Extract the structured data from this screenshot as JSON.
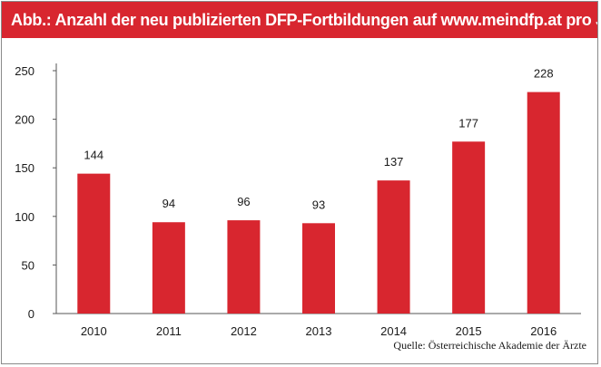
{
  "header": {
    "title": "Abb.: Anzahl der neu publizierten DFP-Fortbildungen auf www.meindfp.at pro Jahr"
  },
  "source_note": "Quelle: Österreichische Akademie der Ärzte",
  "colors": {
    "accent": "#d8262f",
    "bar": "#d8262f",
    "text": "#1a1a1a"
  },
  "chart_data": {
    "type": "bar",
    "categories": [
      "2010",
      "2011",
      "2012",
      "2013",
      "2014",
      "2015",
      "2016"
    ],
    "values": [
      144,
      94,
      96,
      93,
      137,
      177,
      228
    ],
    "data_labels": [
      "144",
      "94",
      "96",
      "93",
      "137",
      "177",
      "228"
    ],
    "yticks": [
      0,
      50,
      100,
      150,
      200,
      250
    ],
    "ylim": [
      0,
      250
    ],
    "grid": false,
    "legend": "none",
    "title": "Abb.: Anzahl der neu publizierten DFP-Fortbildungen auf www.meindfp.at pro Jahr",
    "xlabel": "",
    "ylabel": ""
  }
}
